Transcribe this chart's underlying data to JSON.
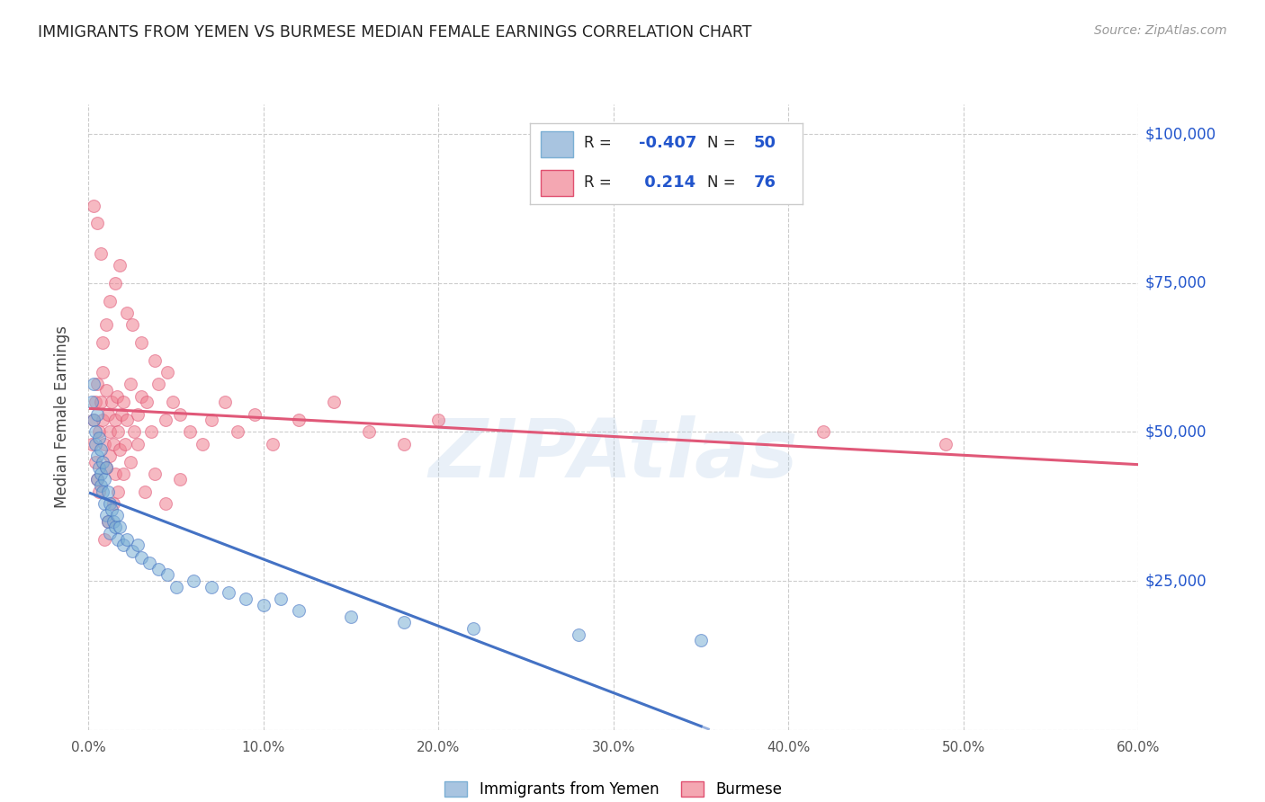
{
  "title": "IMMIGRANTS FROM YEMEN VS BURMESE MEDIAN FEMALE EARNINGS CORRELATION CHART",
  "source": "Source: ZipAtlas.com",
  "ylabel": "Median Female Earnings",
  "yticks": [
    0,
    25000,
    50000,
    75000,
    100000
  ],
  "ytick_labels": [
    "",
    "$25,000",
    "$50,000",
    "$75,000",
    "$100,000"
  ],
  "xlim": [
    0,
    0.6
  ],
  "ylim": [
    0,
    105000
  ],
  "watermark": "ZIPAtlas",
  "background_color": "#ffffff",
  "grid_color": "#cccccc",
  "title_color": "#222222",
  "source_color": "#999999",
  "blue_scatter_color": "#7bafd4",
  "pink_scatter_color": "#f08090",
  "blue_line_color": "#4472c4",
  "pink_line_color": "#e05878",
  "blue_scatter_alpha": 0.55,
  "pink_scatter_alpha": 0.55,
  "scatter_size": 100,
  "yemen_x": [
    0.002,
    0.003,
    0.003,
    0.004,
    0.004,
    0.005,
    0.005,
    0.005,
    0.006,
    0.006,
    0.007,
    0.007,
    0.007,
    0.008,
    0.008,
    0.009,
    0.009,
    0.01,
    0.01,
    0.011,
    0.011,
    0.012,
    0.012,
    0.013,
    0.014,
    0.015,
    0.016,
    0.017,
    0.018,
    0.02,
    0.022,
    0.025,
    0.028,
    0.03,
    0.035,
    0.04,
    0.045,
    0.05,
    0.06,
    0.07,
    0.08,
    0.09,
    0.1,
    0.11,
    0.12,
    0.15,
    0.18,
    0.22,
    0.28,
    0.35
  ],
  "yemen_y": [
    55000,
    58000,
    52000,
    50000,
    48000,
    53000,
    46000,
    42000,
    49000,
    44000,
    47000,
    43000,
    41000,
    45000,
    40000,
    42000,
    38000,
    44000,
    36000,
    40000,
    35000,
    38000,
    33000,
    37000,
    35000,
    34000,
    36000,
    32000,
    34000,
    31000,
    32000,
    30000,
    31000,
    29000,
    28000,
    27000,
    26000,
    24000,
    25000,
    24000,
    23000,
    22000,
    21000,
    22000,
    20000,
    19000,
    18000,
    17000,
    16000,
    15000
  ],
  "burmese_x": [
    0.002,
    0.003,
    0.004,
    0.004,
    0.005,
    0.005,
    0.006,
    0.006,
    0.007,
    0.008,
    0.008,
    0.009,
    0.01,
    0.01,
    0.011,
    0.012,
    0.012,
    0.013,
    0.014,
    0.015,
    0.015,
    0.016,
    0.017,
    0.018,
    0.019,
    0.02,
    0.021,
    0.022,
    0.024,
    0.026,
    0.028,
    0.03,
    0.033,
    0.036,
    0.04,
    0.044,
    0.048,
    0.052,
    0.058,
    0.065,
    0.07,
    0.078,
    0.085,
    0.095,
    0.105,
    0.12,
    0.14,
    0.16,
    0.18,
    0.2,
    0.008,
    0.01,
    0.012,
    0.015,
    0.018,
    0.022,
    0.025,
    0.03,
    0.038,
    0.045,
    0.003,
    0.005,
    0.007,
    0.009,
    0.011,
    0.014,
    0.017,
    0.02,
    0.024,
    0.028,
    0.032,
    0.038,
    0.044,
    0.052,
    0.42,
    0.49
  ],
  "burmese_y": [
    48000,
    52000,
    55000,
    45000,
    58000,
    42000,
    50000,
    40000,
    55000,
    52000,
    60000,
    48000,
    57000,
    44000,
    53000,
    50000,
    46000,
    55000,
    48000,
    52000,
    43000,
    56000,
    50000,
    47000,
    53000,
    55000,
    48000,
    52000,
    58000,
    50000,
    53000,
    56000,
    55000,
    50000,
    58000,
    52000,
    55000,
    53000,
    50000,
    48000,
    52000,
    55000,
    50000,
    53000,
    48000,
    52000,
    55000,
    50000,
    48000,
    52000,
    65000,
    68000,
    72000,
    75000,
    78000,
    70000,
    68000,
    65000,
    62000,
    60000,
    88000,
    85000,
    80000,
    32000,
    35000,
    38000,
    40000,
    43000,
    45000,
    48000,
    40000,
    43000,
    38000,
    42000,
    50000,
    48000
  ]
}
